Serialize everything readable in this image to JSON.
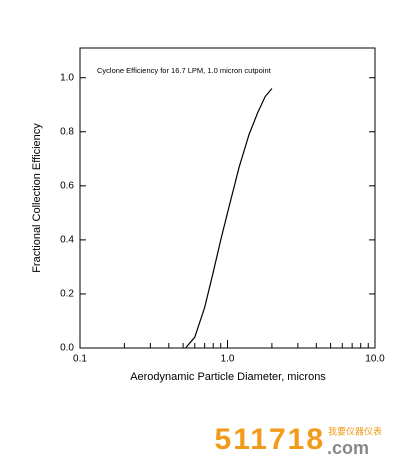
{
  "chart_data": {
    "type": "line",
    "annotation": "Cyclone Efficiency for 16.7 LPM, 1.0 micron cutpoint",
    "xlabel": "Aerodynamic Particle Diameter, microns",
    "ylabel": "Fractional Collection Efficiency",
    "x": [
      0.52,
      0.6,
      0.7,
      0.8,
      0.9,
      1.0,
      1.2,
      1.4,
      1.6,
      1.8,
      2.0
    ],
    "series": [
      {
        "color": "#000000",
        "values": [
          0,
          0.04,
          0.15,
          0.28,
          0.4,
          0.5,
          0.67,
          0.79,
          0.87,
          0.93,
          0.96
        ]
      }
    ],
    "xscale": "log",
    "xlim": [
      0.1,
      10
    ],
    "xticks": [
      0.1,
      {
        "value": 1,
        "label": "1.0"
      },
      {
        "value": 10,
        "label": "10.0"
      }
    ],
    "xminorticks": [
      0.2,
      0.3,
      0.4,
      0.5,
      0.6,
      0.7,
      0.8,
      0.9,
      2,
      3,
      4,
      5,
      6,
      7,
      8,
      9
    ],
    "ylim": [
      0,
      1.11
    ],
    "yticks": [
      {
        "value": 0,
        "label": "0.0"
      },
      0.2,
      0.4,
      0.6,
      0.8,
      {
        "value": 1,
        "label": "1.0"
      }
    ],
    "grid": false
  },
  "watermark": {
    "number": "511718",
    "domain": ".com",
    "site": "我要仪器仪表"
  }
}
